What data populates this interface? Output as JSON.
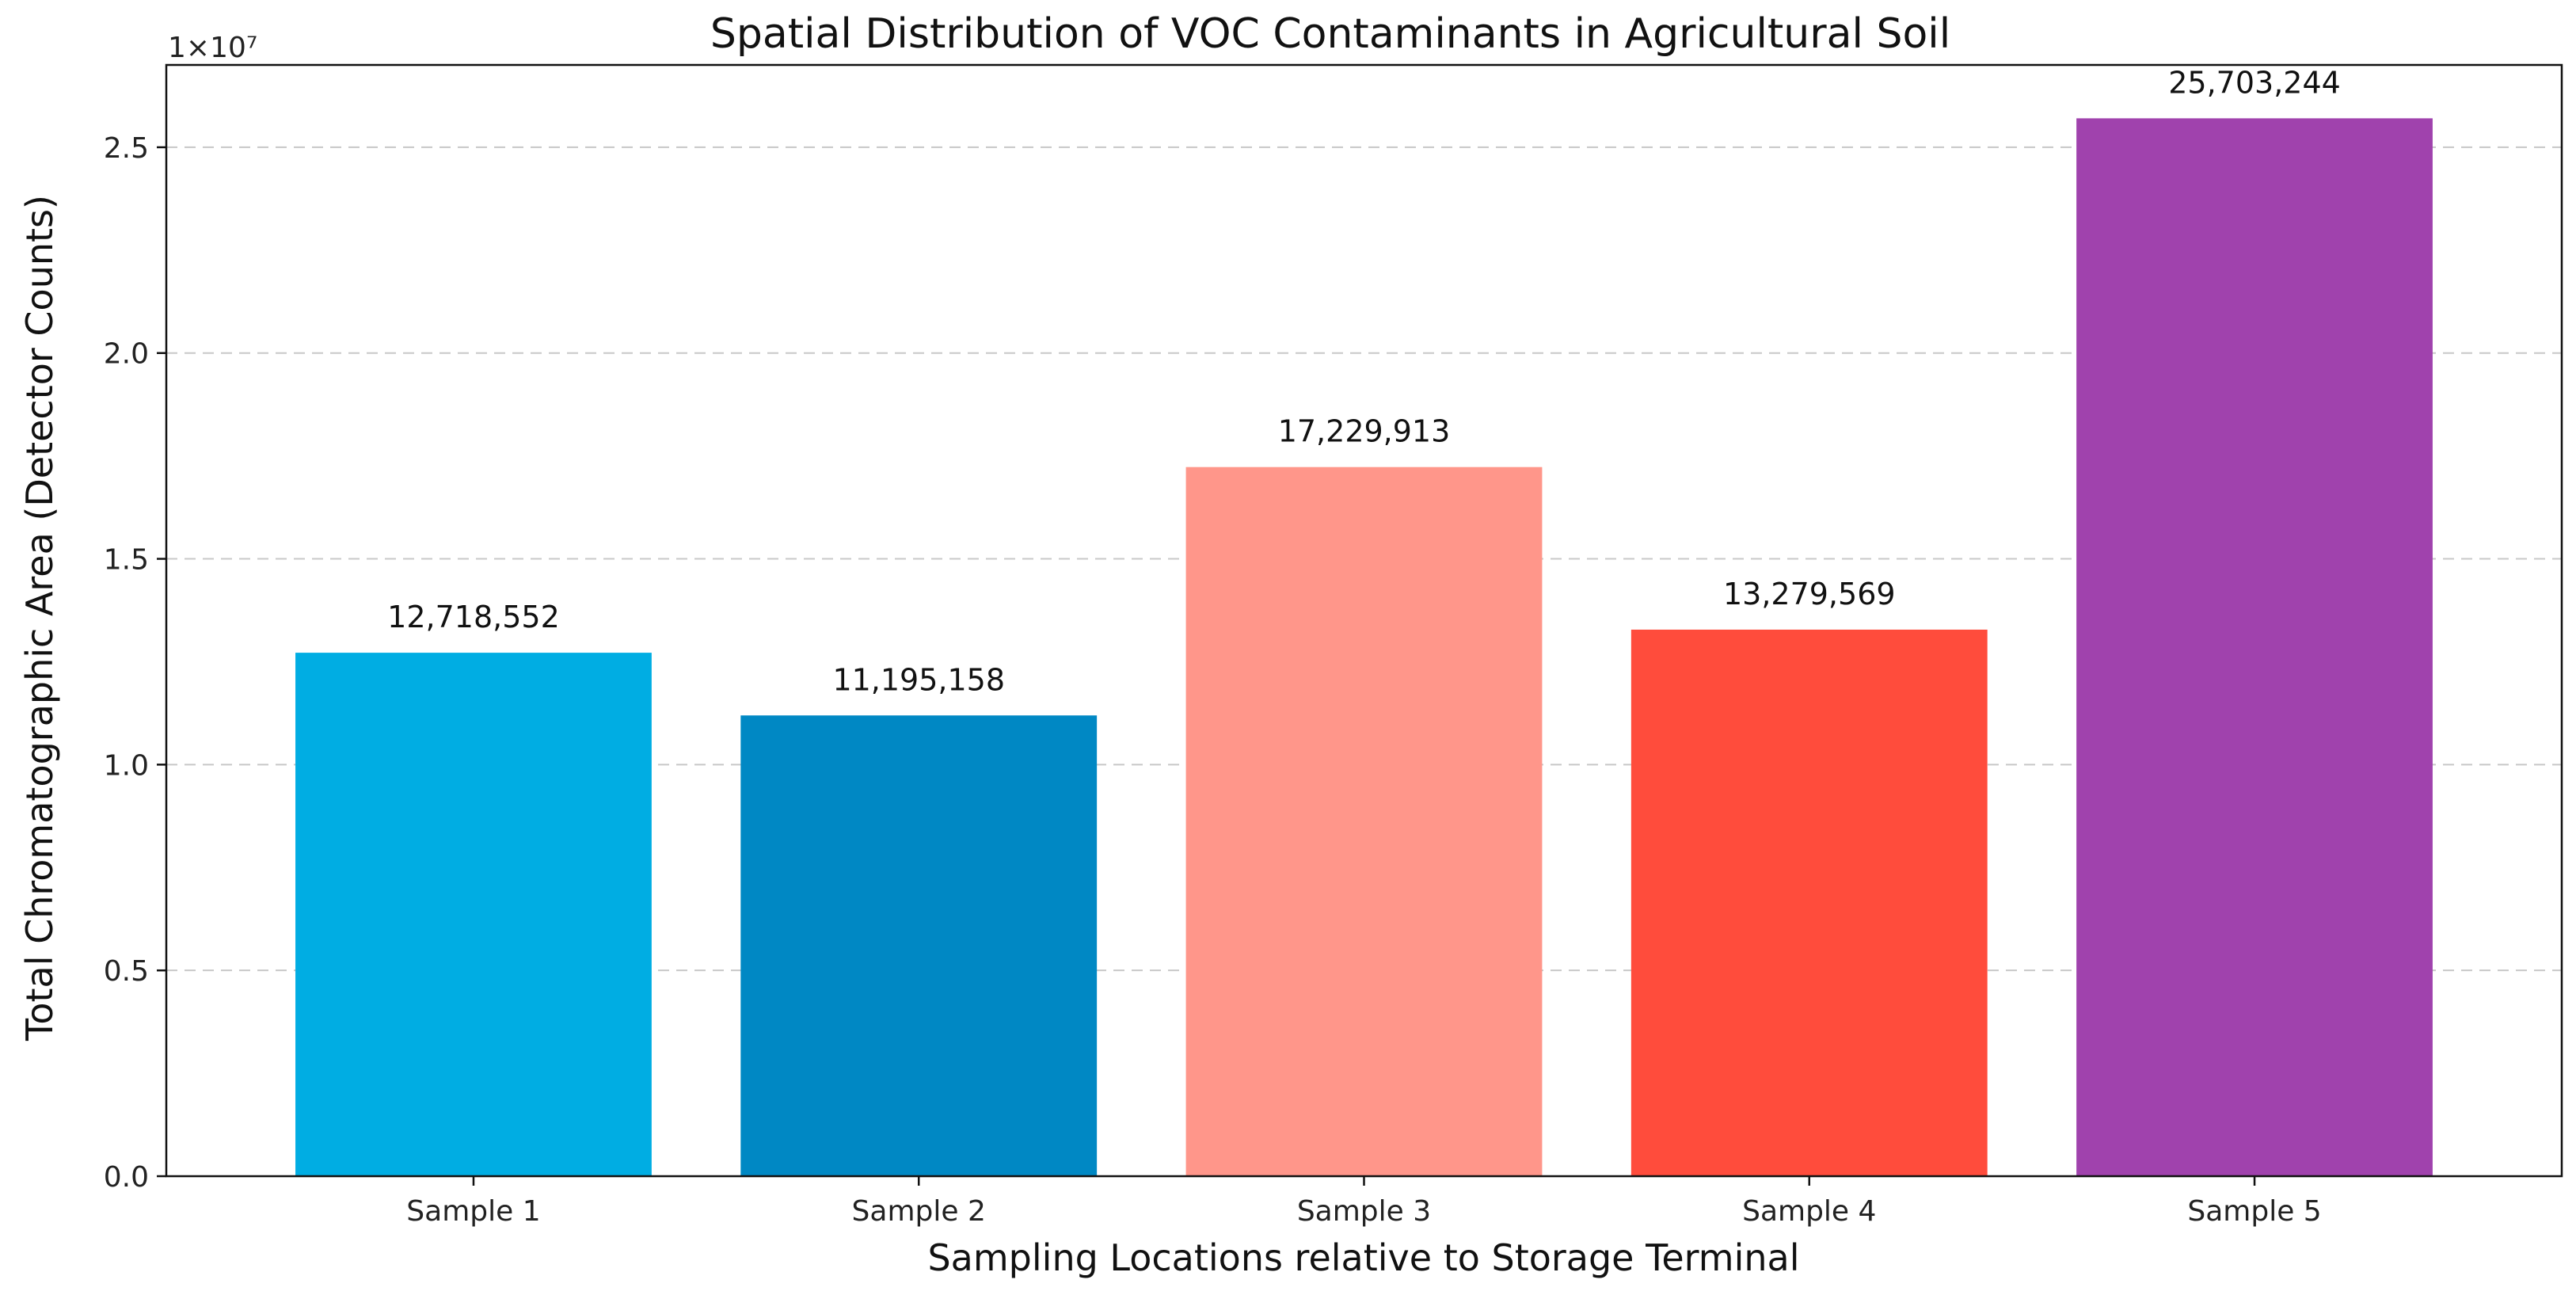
{
  "chart_data": {
    "type": "bar",
    "title": "Spatial Distribution of VOC Contaminants in Agricultural Soil",
    "xlabel": "Sampling Locations relative to Storage Terminal",
    "ylabel": "Total Chromatographic Area (Detector Counts)",
    "y_offset_label": "1×10⁷",
    "categories": [
      "Sample 1",
      "Sample 2",
      "Sample 3",
      "Sample 4",
      "Sample 5"
    ],
    "values": [
      12718552,
      11195158,
      17229913,
      13279569,
      25703244
    ],
    "value_labels": [
      "12,718,552",
      "11,195,158",
      "17,229,913",
      "13,279,569",
      "25,703,244"
    ],
    "colors": [
      "#00ADE3",
      "#0088C4",
      "#FF968A",
      "#FF4C3C",
      "#A042AD"
    ],
    "ylim": [
      0,
      27000000
    ],
    "y_ticks": [
      0,
      5000000,
      10000000,
      15000000,
      20000000,
      25000000
    ],
    "y_tick_labels": [
      "0.0",
      "0.5",
      "1.0",
      "1.5",
      "2.0",
      "2.5"
    ],
    "grid": "y, dashed",
    "legend": "none"
  }
}
